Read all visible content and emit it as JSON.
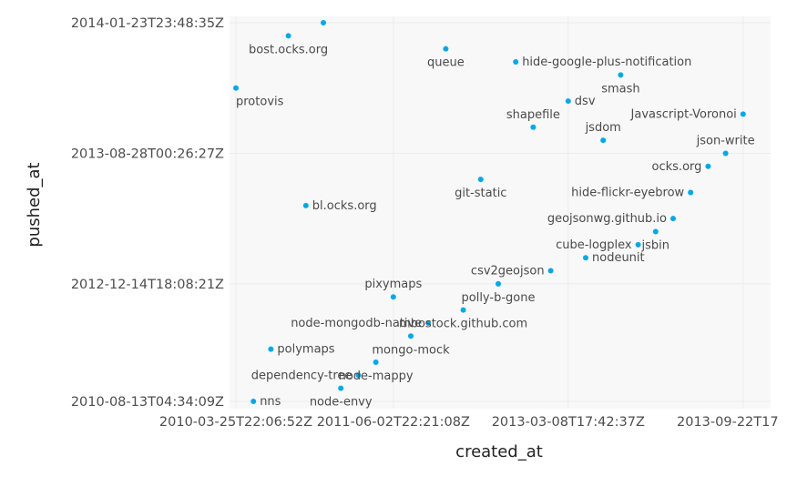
{
  "chart_data": {
    "type": "scatter",
    "xlabel": "created_at",
    "ylabel": "pushed_at",
    "x_scale": "ordinal",
    "y_scale": "ordinal",
    "grid": true,
    "point_color": "#00a8e8",
    "background_color": "#f8f8f8",
    "x_ticks": [
      {
        "rank": 0,
        "label": "2010-03-25T22:06:52Z"
      },
      {
        "rank": 9,
        "label": "2011-06-02T22:21:08Z"
      },
      {
        "rank": 19,
        "label": "2013-03-08T17:42:37Z"
      },
      {
        "rank": 29,
        "label": "2013-09-22T17"
      }
    ],
    "y_ticks": [
      {
        "rank": 29,
        "label": "2014-01-23T23:48:35Z"
      },
      {
        "rank": 19,
        "label": "2013-08-28T00:26:27Z"
      },
      {
        "rank": 9,
        "label": "2012-12-14T18:08:21Z"
      },
      {
        "rank": 0,
        "label": "2010-08-13T04:34:09Z"
      }
    ],
    "points": [
      {
        "name": "protovis",
        "x": 0,
        "y": 24,
        "label_pos": "below"
      },
      {
        "name": "nns",
        "x": 1,
        "y": 0,
        "label_pos": "right"
      },
      {
        "name": "polymaps",
        "x": 2,
        "y": 4,
        "label_pos": "right"
      },
      {
        "name": "bost.ocks.org",
        "x": 3,
        "y": 28,
        "label_pos": "below"
      },
      {
        "name": "bl.ocks.org",
        "x": 4,
        "y": 15,
        "label_pos": "right"
      },
      {
        "name": "",
        "x": 5,
        "y": 29,
        "label_pos": "none"
      },
      {
        "name": "node-envy",
        "x": 6,
        "y": 1,
        "label_pos": "below"
      },
      {
        "name": "dependency-tree",
        "x": 7,
        "y": 2,
        "label_pos": "left"
      },
      {
        "name": "node-mappy",
        "x": 8,
        "y": 3,
        "label_pos": "below"
      },
      {
        "name": "pixymaps",
        "x": 9,
        "y": 8,
        "label_pos": "above"
      },
      {
        "name": "mongo-mock",
        "x": 10,
        "y": 5,
        "label_pos": "below"
      },
      {
        "name": "node-mongodb-native",
        "x": 11,
        "y": 6,
        "label_pos": "left"
      },
      {
        "name": "queue",
        "x": 12,
        "y": 27,
        "label_pos": "below"
      },
      {
        "name": "mbostock.github.com",
        "x": 13,
        "y": 7,
        "label_pos": "below"
      },
      {
        "name": "git-static",
        "x": 14,
        "y": 17,
        "label_pos": "below"
      },
      {
        "name": "polly-b-gone",
        "x": 15,
        "y": 9,
        "label_pos": "below"
      },
      {
        "name": "hide-google-plus-notification",
        "x": 16,
        "y": 26,
        "label_pos": "right"
      },
      {
        "name": "shapefile",
        "x": 17,
        "y": 21,
        "label_pos": "above"
      },
      {
        "name": "csv2geojson",
        "x": 18,
        "y": 10,
        "label_pos": "left"
      },
      {
        "name": "dsv",
        "x": 19,
        "y": 23,
        "label_pos": "right"
      },
      {
        "name": "nodeunit",
        "x": 20,
        "y": 11,
        "label_pos": "right"
      },
      {
        "name": "jsdom",
        "x": 21,
        "y": 20,
        "label_pos": "above"
      },
      {
        "name": "smash",
        "x": 22,
        "y": 25,
        "label_pos": "below"
      },
      {
        "name": "cube-logplex",
        "x": 23,
        "y": 12,
        "label_pos": "left"
      },
      {
        "name": "jsbin",
        "x": 24,
        "y": 13,
        "label_pos": "below"
      },
      {
        "name": "geojsonwg.github.io",
        "x": 25,
        "y": 14,
        "label_pos": "left"
      },
      {
        "name": "hide-flickr-eyebrow",
        "x": 26,
        "y": 16,
        "label_pos": "left"
      },
      {
        "name": "ocks.org",
        "x": 27,
        "y": 18,
        "label_pos": "left"
      },
      {
        "name": "json-write",
        "x": 28,
        "y": 19,
        "label_pos": "above"
      },
      {
        "name": "Javascript-Voronoi",
        "x": 29,
        "y": 22,
        "label_pos": "left"
      }
    ]
  }
}
